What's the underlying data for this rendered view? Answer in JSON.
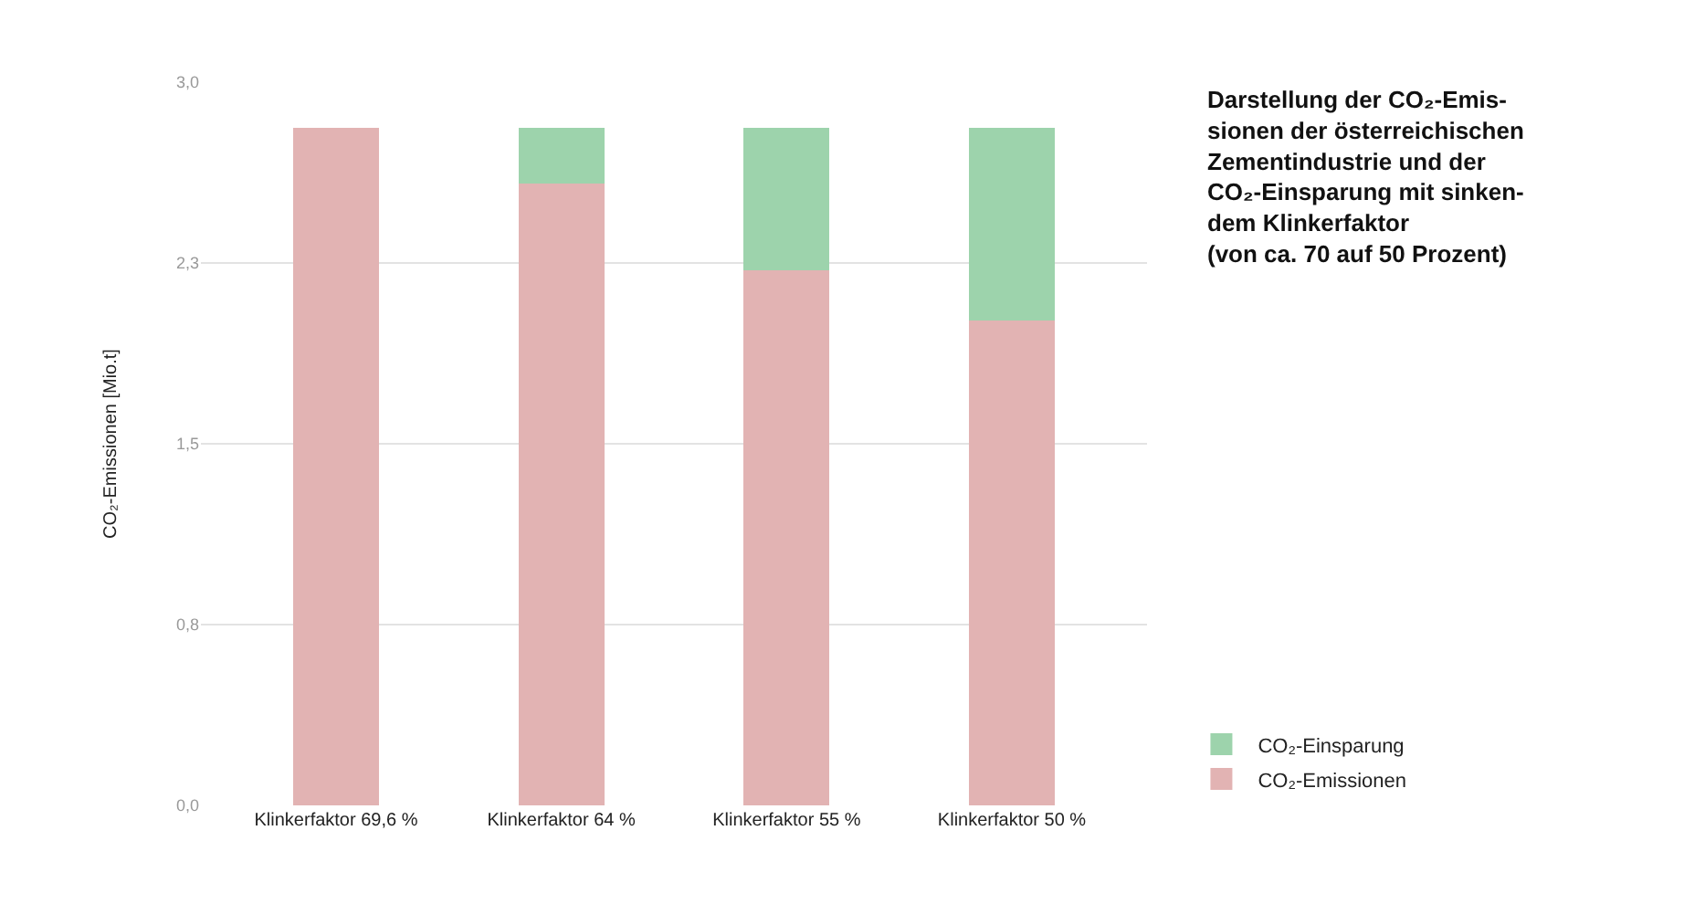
{
  "chart_data": {
    "type": "bar",
    "stacked": true,
    "title": "Darstellung der CO₂-Emis-\nsionen der österreichischen\nZementindustrie und der\nCO₂-Einsparung mit sinken-\ndem Klinkerfaktor\n(von ca. 70 auf 50 Prozent)",
    "ylabel": "CO₂-Emissionen [Mio.t]",
    "categories": [
      "Klinkerfaktor 69,6 %",
      "Klinkerfaktor 64 %",
      "Klinkerfaktor 55 %",
      "Klinkerfaktor 50 %"
    ],
    "series": [
      {
        "name": "CO₂-Emissionen",
        "color": "#e2b3b3",
        "values": [
          2.81,
          2.58,
          2.22,
          2.01
        ]
      },
      {
        "name": "CO₂-Einsparung",
        "color": "#9dd3ac",
        "values": [
          0,
          0.23,
          0.59,
          0.8
        ]
      }
    ],
    "ylim": [
      0,
      3.0
    ],
    "yticks": [
      {
        "value": 0,
        "label": "0,0"
      },
      {
        "value": 0.75,
        "label": "0,8"
      },
      {
        "value": 1.5,
        "label": "1,5"
      },
      {
        "value": 2.25,
        "label": "2,3"
      },
      {
        "value": 3.0,
        "label": "3,0"
      }
    ],
    "grid": "y",
    "legend": "bottom right"
  }
}
